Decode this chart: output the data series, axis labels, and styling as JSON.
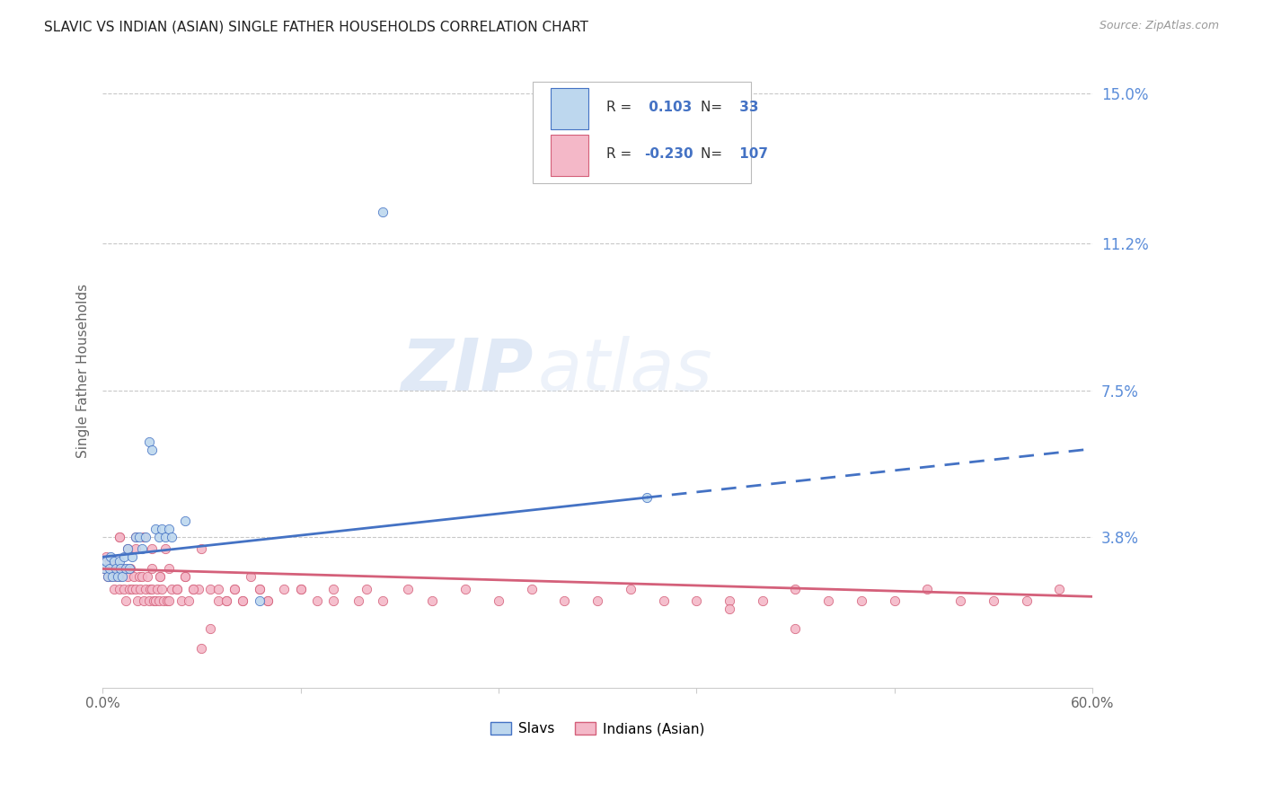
{
  "title": "SLAVIC VS INDIAN (ASIAN) SINGLE FATHER HOUSEHOLDS CORRELATION CHART",
  "source": "Source: ZipAtlas.com",
  "ylabel": "Single Father Households",
  "xlim": [
    0.0,
    0.6
  ],
  "ylim": [
    0.0,
    0.16
  ],
  "yticks": [
    0.038,
    0.075,
    0.112,
    0.15
  ],
  "ytick_labels": [
    "3.8%",
    "7.5%",
    "11.2%",
    "15.0%"
  ],
  "xticks": [
    0.0,
    0.12,
    0.24,
    0.36,
    0.48,
    0.6
  ],
  "xtick_labels": [
    "0.0%",
    "",
    "",
    "",
    "",
    "60.0%"
  ],
  "background_color": "#ffffff",
  "grid_color": "#c8c8c8",
  "watermark_zip": "ZIP",
  "watermark_atlas": "atlas",
  "slavs_fill_color": "#bdd7ee",
  "slavs_edge_color": "#4472c4",
  "indians_fill_color": "#f4b8c8",
  "indians_edge_color": "#d4607a",
  "slavs_line_color": "#4472c4",
  "indians_line_color": "#d4607a",
  "legend_slavs_R": "0.103",
  "legend_slavs_N": "33",
  "legend_indians_R": "-0.230",
  "legend_indians_N": "107",
  "slavs_x": [
    0.001,
    0.002,
    0.003,
    0.004,
    0.005,
    0.006,
    0.007,
    0.008,
    0.009,
    0.01,
    0.011,
    0.012,
    0.013,
    0.014,
    0.015,
    0.016,
    0.018,
    0.02,
    0.022,
    0.024,
    0.026,
    0.028,
    0.03,
    0.032,
    0.034,
    0.036,
    0.038,
    0.04,
    0.042,
    0.05,
    0.095,
    0.17,
    0.33
  ],
  "slavs_y": [
    0.03,
    0.032,
    0.028,
    0.03,
    0.033,
    0.028,
    0.032,
    0.03,
    0.028,
    0.032,
    0.03,
    0.028,
    0.033,
    0.03,
    0.035,
    0.03,
    0.033,
    0.038,
    0.038,
    0.035,
    0.038,
    0.062,
    0.06,
    0.04,
    0.038,
    0.04,
    0.038,
    0.04,
    0.038,
    0.042,
    0.022,
    0.12,
    0.048
  ],
  "indians_x": [
    0.001,
    0.002,
    0.003,
    0.004,
    0.005,
    0.006,
    0.007,
    0.008,
    0.009,
    0.01,
    0.011,
    0.012,
    0.013,
    0.014,
    0.015,
    0.016,
    0.017,
    0.018,
    0.019,
    0.02,
    0.021,
    0.022,
    0.023,
    0.024,
    0.025,
    0.026,
    0.027,
    0.028,
    0.029,
    0.03,
    0.031,
    0.032,
    0.033,
    0.034,
    0.035,
    0.036,
    0.037,
    0.038,
    0.039,
    0.04,
    0.042,
    0.045,
    0.048,
    0.05,
    0.052,
    0.055,
    0.058,
    0.06,
    0.065,
    0.07,
    0.075,
    0.08,
    0.085,
    0.09,
    0.095,
    0.1,
    0.11,
    0.12,
    0.13,
    0.14,
    0.155,
    0.17,
    0.185,
    0.2,
    0.22,
    0.24,
    0.26,
    0.28,
    0.3,
    0.32,
    0.34,
    0.36,
    0.38,
    0.4,
    0.42,
    0.44,
    0.46,
    0.48,
    0.5,
    0.52,
    0.54,
    0.56,
    0.58,
    0.01,
    0.015,
    0.02,
    0.025,
    0.03,
    0.035,
    0.04,
    0.045,
    0.05,
    0.055,
    0.06,
    0.065,
    0.07,
    0.075,
    0.08,
    0.085,
    0.095,
    0.1,
    0.12,
    0.14,
    0.16,
    0.38,
    0.42,
    0.01,
    0.02,
    0.03
  ],
  "indians_y": [
    0.03,
    0.033,
    0.028,
    0.032,
    0.028,
    0.03,
    0.025,
    0.028,
    0.03,
    0.025,
    0.028,
    0.03,
    0.025,
    0.022,
    0.028,
    0.025,
    0.03,
    0.025,
    0.028,
    0.025,
    0.022,
    0.028,
    0.025,
    0.028,
    0.022,
    0.025,
    0.028,
    0.022,
    0.025,
    0.025,
    0.022,
    0.022,
    0.025,
    0.022,
    0.028,
    0.025,
    0.022,
    0.035,
    0.022,
    0.022,
    0.025,
    0.025,
    0.022,
    0.028,
    0.022,
    0.025,
    0.025,
    0.035,
    0.025,
    0.025,
    0.022,
    0.025,
    0.022,
    0.028,
    0.025,
    0.022,
    0.025,
    0.025,
    0.022,
    0.025,
    0.022,
    0.022,
    0.025,
    0.022,
    0.025,
    0.022,
    0.025,
    0.022,
    0.022,
    0.025,
    0.022,
    0.022,
    0.022,
    0.022,
    0.025,
    0.022,
    0.022,
    0.022,
    0.025,
    0.022,
    0.022,
    0.022,
    0.025,
    0.038,
    0.035,
    0.035,
    0.038,
    0.03,
    0.028,
    0.03,
    0.025,
    0.028,
    0.025,
    0.01,
    0.015,
    0.022,
    0.022,
    0.025,
    0.022,
    0.025,
    0.022,
    0.025,
    0.022,
    0.025,
    0.02,
    0.015,
    0.038,
    0.038,
    0.035
  ]
}
